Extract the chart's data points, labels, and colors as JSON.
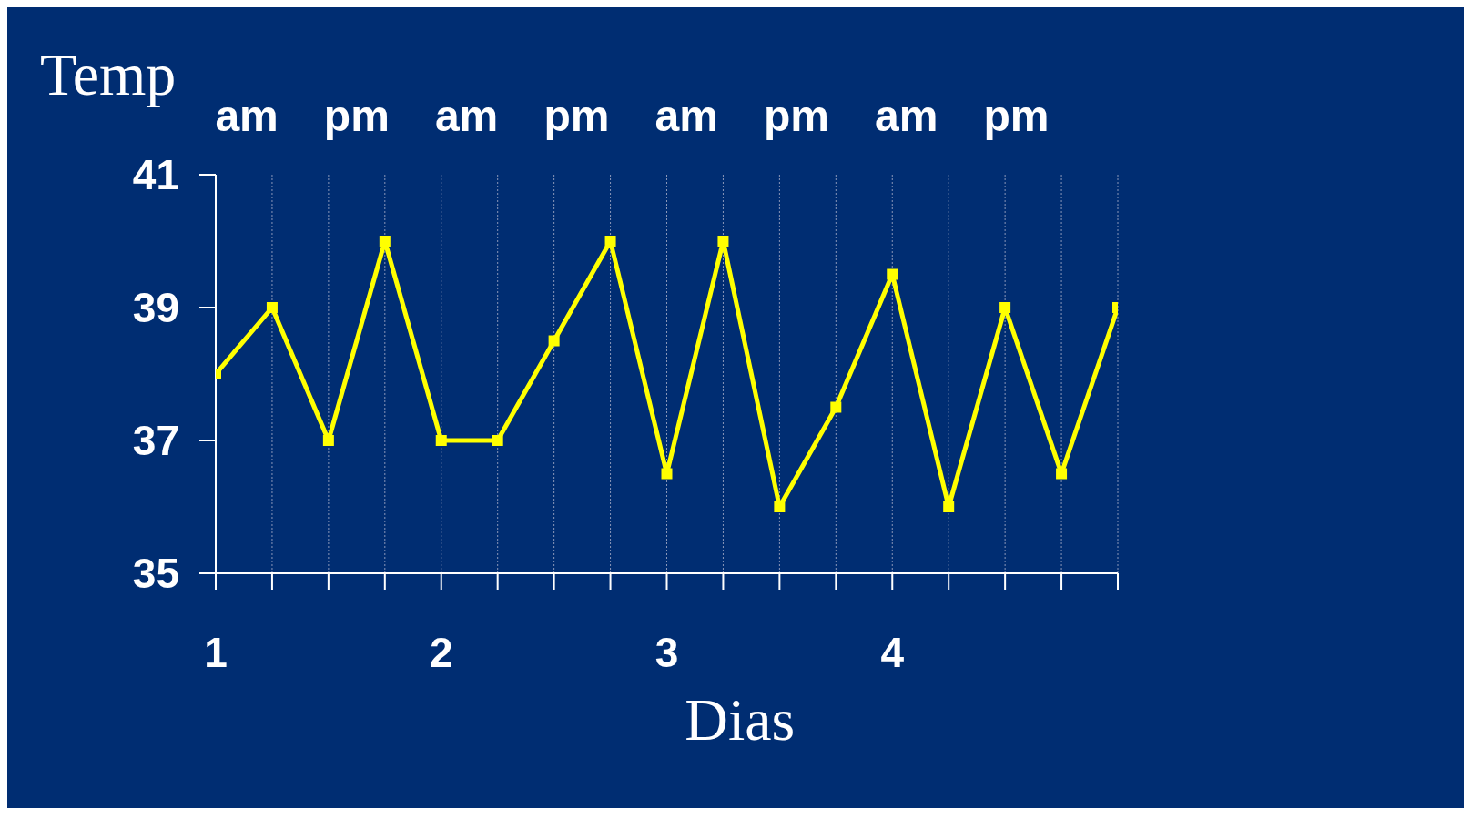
{
  "chart_data": {
    "type": "line",
    "xlabel": "Dias",
    "ylabel": "Temp",
    "categories": [
      "1",
      null,
      null,
      null,
      "2",
      null,
      null,
      null,
      "3",
      null,
      null,
      null,
      "4",
      null,
      null,
      null,
      null
    ],
    "series": [
      {
        "color": "#ffff00",
        "values": [
          38,
          39,
          37,
          40,
          37,
          37,
          38.5,
          40,
          36.5,
          40,
          36,
          37.5,
          39.5,
          36,
          39,
          36.5,
          39
        ]
      }
    ],
    "ylim": [
      35,
      41
    ],
    "yticks": [
      35,
      37,
      39,
      41
    ],
    "grid": "x",
    "marker": "square",
    "line_style": "solid",
    "annotations": [
      "am",
      "pm",
      "am",
      "pm",
      "am",
      "pm",
      "am",
      "pm"
    ]
  }
}
